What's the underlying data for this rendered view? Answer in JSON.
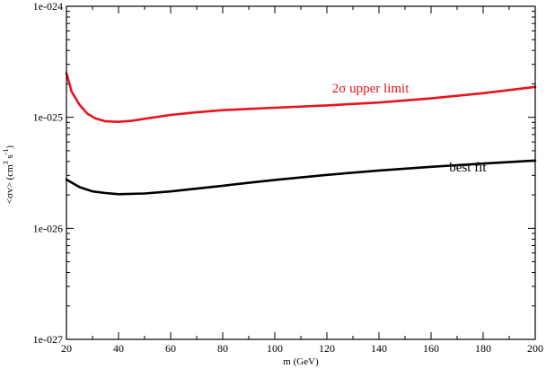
{
  "chart_data": {
    "type": "line",
    "title": "",
    "xlabel": "m (GeV)",
    "ylabel_parts": [
      "<σv> (cm",
      "3",
      " s",
      "-1",
      ")"
    ],
    "xlim": [
      20,
      200
    ],
    "ylim": [
      1e-27,
      1e-24
    ],
    "y_scale": "log",
    "grid": false,
    "x_ticks": [
      20,
      40,
      60,
      80,
      100,
      120,
      140,
      160,
      180,
      200
    ],
    "x_tick_labels": [
      "20",
      "40",
      "60",
      "80",
      "100",
      "120",
      "140",
      "160",
      "180",
      "200"
    ],
    "y_ticks": [
      1e-27,
      1e-26,
      1e-25,
      1e-24
    ],
    "y_tick_labels": [
      "1e-027",
      "1e-026",
      "1e-025",
      "1e-024"
    ],
    "series": [
      {
        "name": "2σ upper limit",
        "color": "#e8141c",
        "x": [
          20,
          22,
          25,
          28,
          31,
          35,
          40,
          45,
          50,
          60,
          70,
          80,
          90,
          100,
          120,
          140,
          160,
          180,
          200
        ],
        "y": [
          2.5e-25,
          1.7e-25,
          1.3e-25,
          1.08e-25,
          9.8e-26,
          9.2e-26,
          9.1e-26,
          9.3e-26,
          9.7e-26,
          1.05e-25,
          1.11e-25,
          1.16e-25,
          1.19e-25,
          1.22e-25,
          1.28e-25,
          1.36e-25,
          1.48e-25,
          1.65e-25,
          1.88e-25
        ]
      },
      {
        "name": "best fit",
        "color": "#000000",
        "x": [
          20,
          25,
          30,
          35,
          40,
          50,
          60,
          70,
          80,
          90,
          100,
          120,
          140,
          160,
          180,
          200
        ],
        "y": [
          2.75e-26,
          2.35e-26,
          2.15e-26,
          2.08e-26,
          2.03e-26,
          2.06e-26,
          2.15e-26,
          2.28e-26,
          2.42e-26,
          2.57e-26,
          2.73e-26,
          3.03e-26,
          3.32e-26,
          3.58e-26,
          3.83e-26,
          4.08e-26
        ]
      }
    ],
    "annotations": [
      {
        "text": "2σ upper limit",
        "x": 122,
        "y": 1.68e-25,
        "color": "#e8141c"
      },
      {
        "text": "best fit",
        "x": 167,
        "y": 3.25e-26,
        "color": "#000000"
      }
    ]
  }
}
